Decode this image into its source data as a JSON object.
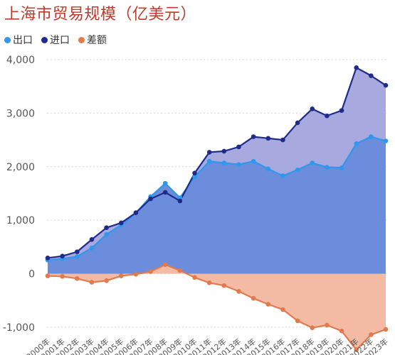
{
  "title": "上海市贸易规模（亿美元）",
  "legend": [
    {
      "name": "出口",
      "color": "#2f97ec"
    },
    {
      "name": "进口",
      "color": "#1f2b8a"
    },
    {
      "name": "差额",
      "color": "#e07a4f"
    }
  ],
  "chart_data": {
    "type": "area",
    "title": "上海市贸易规模（亿美元）",
    "xlabel": "",
    "ylabel": "",
    "ylim": [
      -1200,
      4000
    ],
    "yticks": [
      4000,
      3000,
      2000,
      1000,
      0,
      -1000
    ],
    "ytick_labels": [
      "4,000",
      "3,000",
      "2,000",
      "1,000",
      "0",
      "-1,000"
    ],
    "grid": true,
    "legend_position": "top-left",
    "categories": [
      "2000年",
      "2001年",
      "2002年",
      "2003年",
      "2004年",
      "2005年",
      "2006年",
      "2007年",
      "2008年",
      "2009年",
      "2010年",
      "2011年",
      "2012年",
      "2013年",
      "2014年",
      "2015年",
      "2016年",
      "2017年",
      "2018年",
      "2019年",
      "2020年",
      "2021年",
      "2022年",
      "2023年"
    ],
    "series": [
      {
        "name": "出口",
        "color": "#2f97ec",
        "fill": "#6b8ddb",
        "values": [
          255,
          280,
          320,
          480,
          735,
          910,
          1135,
          1440,
          1690,
          1420,
          1810,
          2100,
          2070,
          2040,
          2100,
          1960,
          1830,
          1940,
          2070,
          1990,
          1980,
          2430,
          2560,
          2480
        ]
      },
      {
        "name": "进口",
        "color": "#1f2b8a",
        "fill": "#a7a9df",
        "values": [
          295,
          330,
          410,
          640,
          860,
          950,
          1140,
          1400,
          1520,
          1360,
          1880,
          2270,
          2290,
          2370,
          2560,
          2530,
          2500,
          2820,
          3080,
          2950,
          3050,
          3850,
          3700,
          3520
        ]
      },
      {
        "name": "差额",
        "color": "#e07a4f",
        "fill": "#f3bba4",
        "values": [
          -40,
          -50,
          -90,
          -160,
          -130,
          -40,
          -10,
          40,
          170,
          60,
          -70,
          -170,
          -220,
          -330,
          -460,
          -570,
          -670,
          -880,
          -1010,
          -960,
          -1070,
          -1420,
          -1140,
          -1040
        ]
      }
    ]
  }
}
